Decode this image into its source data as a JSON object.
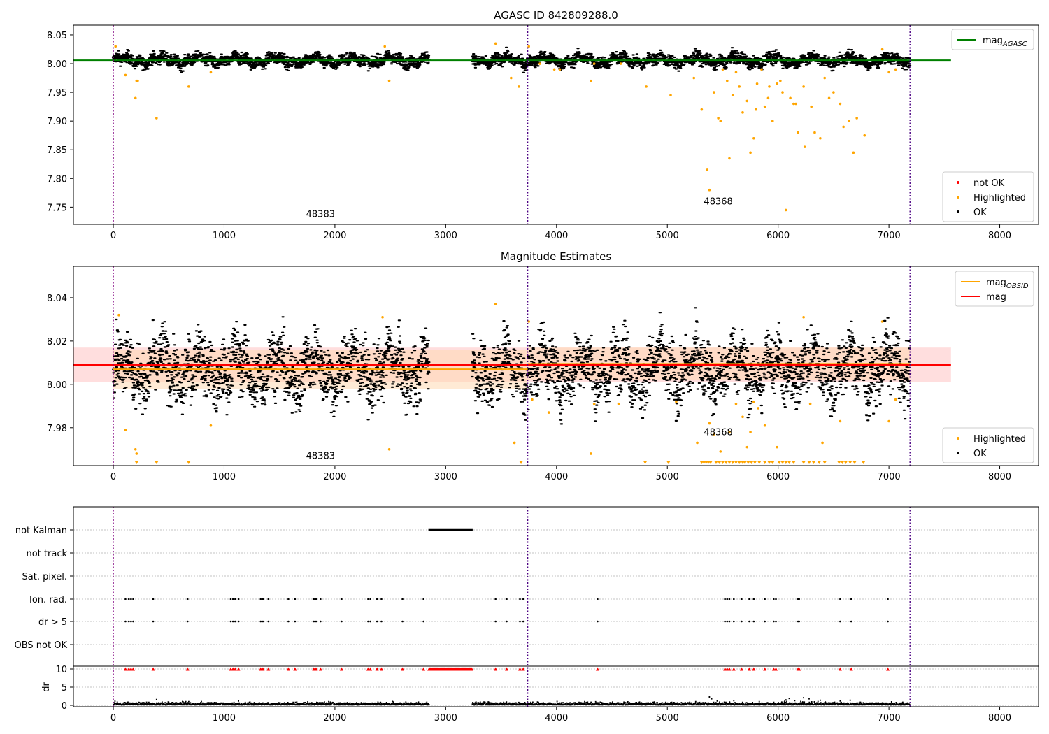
{
  "figure": {
    "background": "#ffffff"
  },
  "colors": {
    "ok": "#000000",
    "highlighted": "#ffa500",
    "not_ok": "#ff0000",
    "agasc_line": "#008000",
    "mag_line": "#ff0000",
    "obsid_line": "#ffa500",
    "obs_boundary": "#4b0082",
    "obs_start": "#800080",
    "grid": "#b0b0b0",
    "mag_band": "#ffc8c8",
    "obsid_band": "#ffd9b3"
  },
  "chart_data": [
    {
      "type": "scatter",
      "title": "AGASC ID 842809288.0",
      "xlabel": "",
      "ylabel": "",
      "xlim": [
        -360,
        8350
      ],
      "ylim": [
        7.72,
        8.067
      ],
      "xticks": [
        0,
        1000,
        2000,
        3000,
        4000,
        5000,
        6000,
        7000,
        8000
      ],
      "yticks": [
        7.75,
        7.8,
        7.85,
        7.9,
        7.95,
        8.0,
        8.05
      ],
      "ytick_labels": [
        "7.75",
        "7.80",
        "7.85",
        "7.90",
        "7.95",
        "8.00",
        "8.05"
      ],
      "obs_boundaries": [
        0,
        3740,
        7190
      ],
      "obsid_labels": [
        {
          "x": 1870,
          "y": 7.733,
          "text": "48383"
        },
        {
          "x": 5460,
          "y": 7.755,
          "text": "48368"
        }
      ],
      "mag_agasc": {
        "value": 8.006,
        "xrange": [
          -360,
          7560
        ]
      },
      "legend_top": [
        {
          "kind": "line",
          "color": "#008000",
          "label": "mag",
          "sub": "AGASC"
        }
      ],
      "legend_bottom": [
        {
          "kind": "dot",
          "color": "#ff0000",
          "label": "not OK"
        },
        {
          "kind": "dot",
          "color": "#ffa500",
          "label": "Highlighted"
        },
        {
          "kind": "dot",
          "color": "#000000",
          "label": "OK"
        }
      ],
      "ok_band": {
        "center": 8.006,
        "spread": 0.009
      },
      "highlighted_points": [
        [
          20,
          8.03
        ],
        [
          110,
          7.98
        ],
        [
          200,
          7.94
        ],
        [
          210,
          7.97
        ],
        [
          220,
          7.97
        ],
        [
          390,
          7.905
        ],
        [
          680,
          7.96
        ],
        [
          880,
          7.985
        ],
        [
          2450,
          8.03
        ],
        [
          2490,
          7.97
        ],
        [
          3450,
          8.035
        ],
        [
          3590,
          7.975
        ],
        [
          3660,
          7.96
        ],
        [
          3750,
          8.03
        ],
        [
          3980,
          7.99
        ],
        [
          4030,
          7.99
        ],
        [
          4310,
          7.97
        ],
        [
          4340,
          8.0
        ],
        [
          4810,
          7.96
        ],
        [
          5030,
          7.945
        ],
        [
          5240,
          7.975
        ],
        [
          5310,
          7.92
        ],
        [
          5360,
          7.815
        ],
        [
          5380,
          7.78
        ],
        [
          5420,
          7.95
        ],
        [
          5460,
          7.905
        ],
        [
          5480,
          7.9
        ],
        [
          5500,
          7.99
        ],
        [
          5540,
          7.97
        ],
        [
          5560,
          7.835
        ],
        [
          5590,
          7.945
        ],
        [
          5620,
          7.985
        ],
        [
          5650,
          7.96
        ],
        [
          5680,
          7.915
        ],
        [
          5720,
          7.935
        ],
        [
          5750,
          7.845
        ],
        [
          5780,
          7.87
        ],
        [
          5810,
          7.965
        ],
        [
          5850,
          7.99
        ],
        [
          5880,
          7.925
        ],
        [
          5910,
          7.94
        ],
        [
          5950,
          7.9
        ],
        [
          5990,
          7.965
        ],
        [
          6040,
          7.95
        ],
        [
          6070,
          7.745
        ],
        [
          6110,
          7.94
        ],
        [
          6160,
          7.93
        ],
        [
          6180,
          7.88
        ],
        [
          6240,
          7.855
        ],
        [
          6300,
          7.925
        ],
        [
          6330,
          7.88
        ],
        [
          6380,
          7.87
        ],
        [
          6420,
          7.975
        ],
        [
          6500,
          7.95
        ],
        [
          6560,
          7.93
        ],
        [
          6590,
          7.89
        ],
        [
          6640,
          7.9
        ],
        [
          6680,
          7.845
        ],
        [
          6710,
          7.905
        ],
        [
          6780,
          7.875
        ],
        [
          6940,
          8.025
        ],
        [
          7000,
          7.985
        ],
        [
          7060,
          7.99
        ],
        [
          3850,
          8.0
        ],
        [
          4580,
          8.0
        ],
        [
          5800,
          7.92
        ],
        [
          5920,
          7.96
        ],
        [
          6020,
          7.97
        ],
        [
          6140,
          7.93
        ],
        [
          6230,
          7.96
        ],
        [
          6460,
          7.94
        ]
      ]
    },
    {
      "type": "scatter",
      "title": "Magnitude Estimates",
      "xlabel": "",
      "ylabel": "",
      "xlim": [
        -360,
        8350
      ],
      "ylim": [
        7.9625,
        8.0545
      ],
      "xticks": [
        0,
        1000,
        2000,
        3000,
        4000,
        5000,
        6000,
        7000,
        8000
      ],
      "yticks": [
        7.98,
        8.0,
        8.02,
        8.04
      ],
      "ytick_labels": [
        "7.98",
        "8.00",
        "8.02",
        "8.04"
      ],
      "obs_boundaries": [
        0,
        3740,
        7190
      ],
      "obsid_labels": [
        {
          "x": 1870,
          "y": 7.9655,
          "text": "48383"
        },
        {
          "x": 5460,
          "y": 7.9765,
          "text": "48368"
        }
      ],
      "mag": {
        "value": 8.009,
        "band": [
          8.001,
          8.017
        ],
        "xrange": [
          -360,
          7560
        ]
      },
      "mag_obsid": [
        {
          "x0": 0,
          "x1": 3740,
          "value": 8.007,
          "band": [
            7.998,
            8.016
          ]
        },
        {
          "x0": 3740,
          "x1": 7190,
          "value": 8.0095,
          "band": [
            8.002,
            8.017
          ]
        }
      ],
      "legend_top": [
        {
          "kind": "line",
          "color": "#ffa500",
          "label": "mag",
          "sub": "OBSID"
        },
        {
          "kind": "line",
          "color": "#ff0000",
          "label": "mag"
        }
      ],
      "legend_bottom": [
        {
          "kind": "dot",
          "color": "#ffa500",
          "label": "Highlighted"
        },
        {
          "kind": "dot",
          "color": "#000000",
          "label": "OK"
        }
      ],
      "ok_band": {
        "center": 8.007,
        "spread": 0.012
      },
      "highlighted_points": [
        [
          50,
          8.032
        ],
        [
          110,
          7.979
        ],
        [
          200,
          7.97
        ],
        [
          210,
          7.968
        ],
        [
          880,
          7.981
        ],
        [
          2430,
          8.031
        ],
        [
          2490,
          7.97
        ],
        [
          3450,
          8.037
        ],
        [
          3620,
          7.973
        ],
        [
          3750,
          8.029
        ],
        [
          3780,
          7.993
        ],
        [
          3930,
          7.987
        ],
        [
          4310,
          7.968
        ],
        [
          4340,
          7.991
        ],
        [
          4560,
          7.991
        ],
        [
          5080,
          7.992
        ],
        [
          5270,
          7.973
        ],
        [
          5380,
          7.982
        ],
        [
          5420,
          7.977
        ],
        [
          5480,
          7.969
        ],
        [
          5560,
          7.978
        ],
        [
          5620,
          7.991
        ],
        [
          5680,
          7.985
        ],
        [
          5720,
          7.971
        ],
        [
          5750,
          7.978
        ],
        [
          5780,
          7.992
        ],
        [
          5820,
          7.989
        ],
        [
          5880,
          7.981
        ],
        [
          5990,
          7.971
        ],
        [
          6230,
          8.031
        ],
        [
          6290,
          7.991
        ],
        [
          6400,
          7.973
        ],
        [
          6560,
          7.983
        ],
        [
          6940,
          8.029
        ],
        [
          7000,
          7.983
        ],
        [
          7060,
          7.993
        ]
      ],
      "clipped_markers_x": [
        210,
        390,
        680,
        3680,
        4800,
        5010,
        5310,
        5330,
        5350,
        5370,
        5390,
        5440,
        5470,
        5500,
        5530,
        5560,
        5590,
        5620,
        5650,
        5680,
        5700,
        5730,
        5760,
        5790,
        5830,
        5880,
        5920,
        5950,
        6010,
        6040,
        6070,
        6100,
        6140,
        6230,
        6280,
        6320,
        6370,
        6420,
        6550,
        6580,
        6610,
        6650,
        6690,
        6770
      ]
    },
    {
      "type": "scatter",
      "title": "",
      "xlabel": "",
      "ylabel": "dr",
      "xlim": [
        -360,
        8350
      ],
      "xticks": [
        0,
        1000,
        2000,
        3000,
        4000,
        5000,
        6000,
        7000,
        8000
      ],
      "obs_boundaries": [
        0,
        3740,
        7190
      ],
      "flag_rows": [
        "not Kalman",
        "not track",
        "Sat. pixel.",
        "Ion. rad.",
        "dr > 5",
        "OBS not OK"
      ],
      "not_kalman_range": [
        2850,
        3240
      ],
      "flag_x": [
        110,
        140,
        160,
        180,
        360,
        670,
        1060,
        1080,
        1100,
        1130,
        1330,
        1350,
        1400,
        1580,
        1640,
        1810,
        1830,
        1870,
        2060,
        2300,
        2320,
        2380,
        2420,
        2610,
        2800,
        3450,
        3550,
        3670,
        3700,
        4370,
        5520,
        5540,
        5560,
        5600,
        5670,
        5740,
        5780,
        5880,
        5960,
        5980,
        6180,
        6190,
        6560,
        6660,
        6990
      ],
      "dr_range": [
        0,
        10
      ],
      "dr_ticks": [
        0,
        5,
        10
      ],
      "dr_tick_labels": [
        "0",
        "5",
        "10"
      ],
      "dr_spikes": [
        [
          390,
          1.6
        ],
        [
          1130,
          1.2
        ],
        [
          5380,
          2.3
        ],
        [
          5400,
          1.8
        ],
        [
          5450,
          1.2
        ],
        [
          5600,
          1.3
        ],
        [
          5830,
          1.0
        ],
        [
          6060,
          1.2
        ],
        [
          6070,
          1.5
        ],
        [
          6100,
          1.9
        ],
        [
          6150,
          1.3
        ],
        [
          6230,
          2.1
        ],
        [
          6280,
          1.8
        ],
        [
          6380,
          1.4
        ],
        [
          6560,
          1.2
        ],
        [
          6650,
          1.4
        ]
      ],
      "dr_gaps": [
        [
          2850,
          3240
        ]
      ]
    }
  ]
}
